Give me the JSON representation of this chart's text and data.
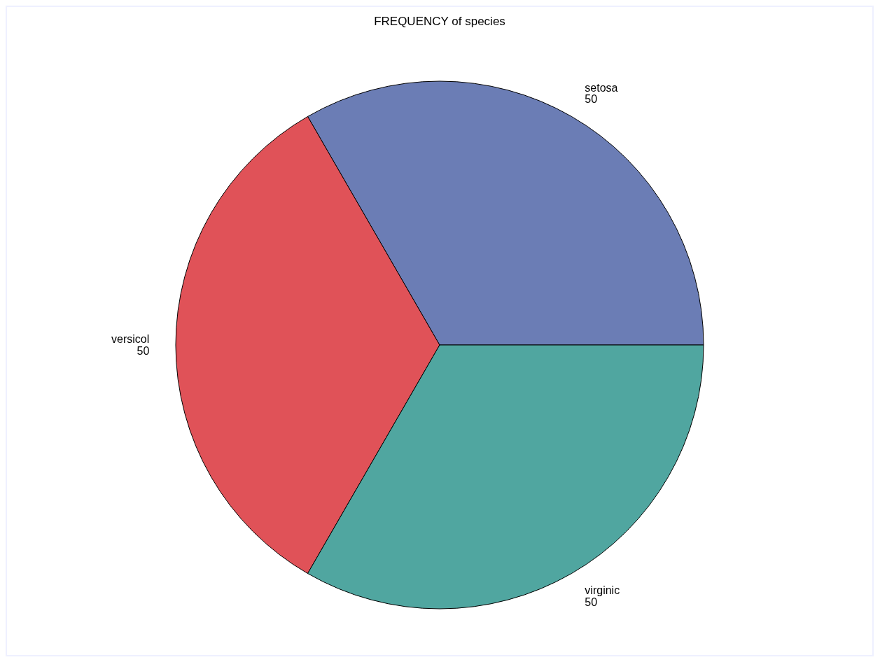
{
  "chart_data": {
    "type": "pie",
    "title": "FREQUENCY of species",
    "categories": [
      "setosa",
      "versicol",
      "virginic"
    ],
    "values": [
      50,
      50,
      50
    ],
    "colors": [
      "#6b7db5",
      "#e05258",
      "#50a6a0"
    ],
    "data_labels": true
  }
}
